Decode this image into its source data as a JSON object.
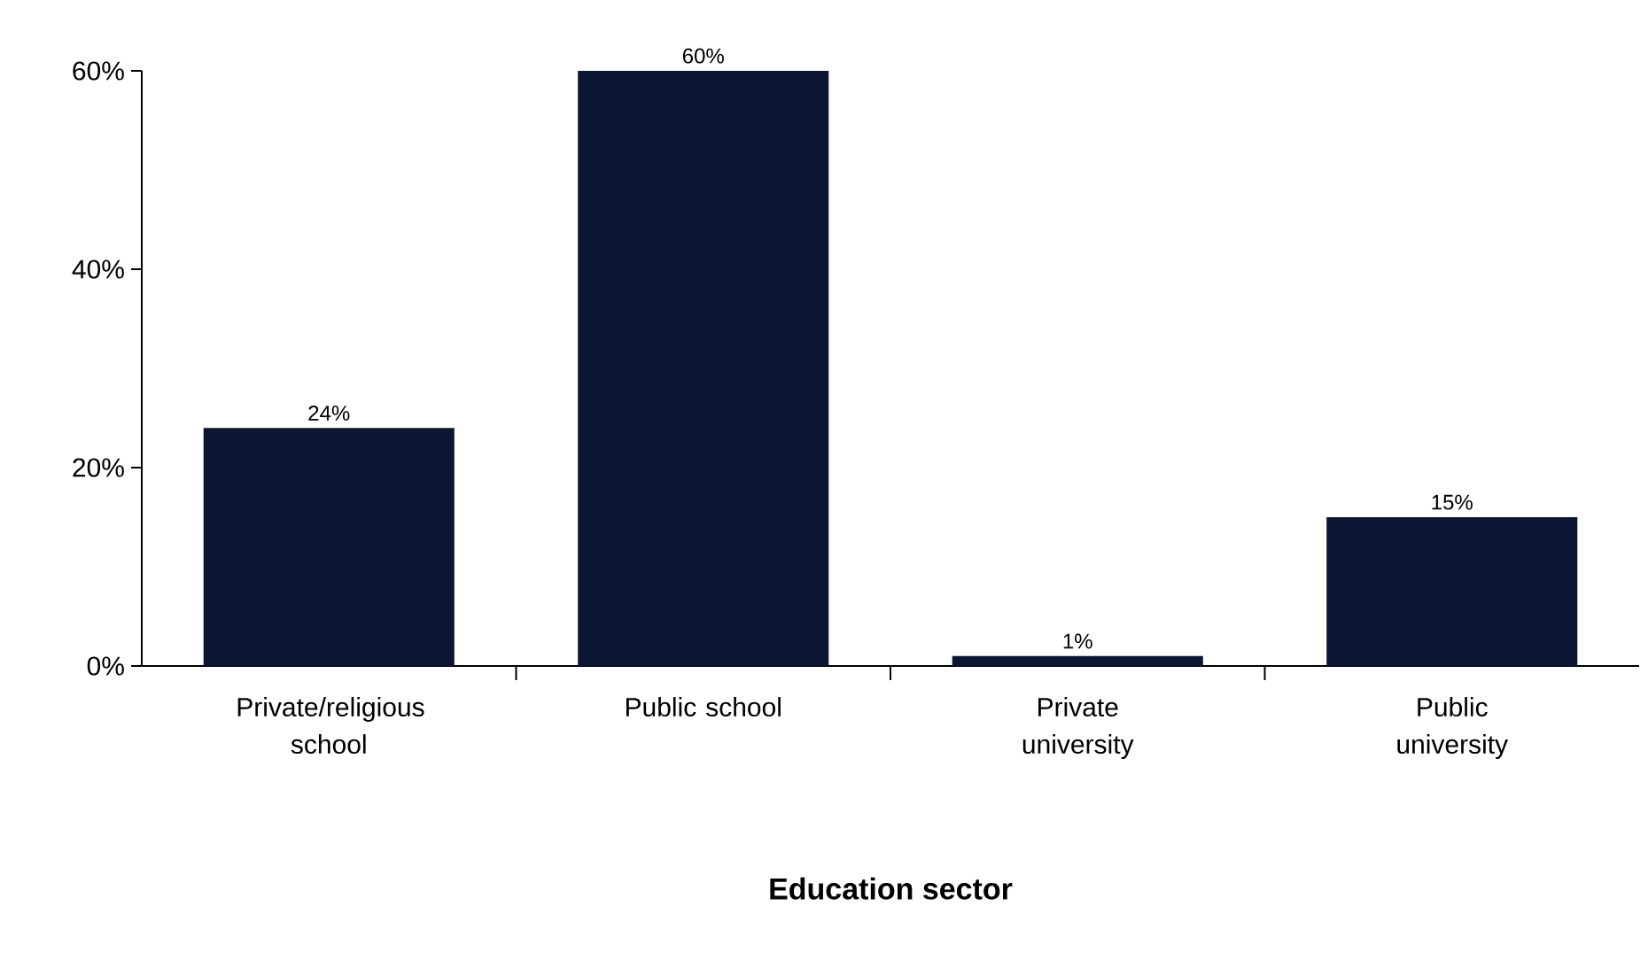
{
  "chart_data": {
    "type": "bar",
    "xlabel": "**Education sector**",
    "categories": [
      "Private/religious school",
      "Public school",
      "Private university",
      "Public university"
    ],
    "values": [
      24,
      60,
      1,
      15
    ],
    "value_labels": [
      "24%",
      "60%",
      "1%",
      "15%"
    ],
    "color": "#0b1632",
    "ylim": [
      0,
      60
    ],
    "yticks": [
      {
        "value": 0,
        "label": "0%"
      },
      {
        "value": 20,
        "label": "20%"
      },
      {
        "value": 40,
        "label": "40%"
      },
      {
        "value": 60,
        "label": "60%"
      }
    ],
    "grid": false
  }
}
